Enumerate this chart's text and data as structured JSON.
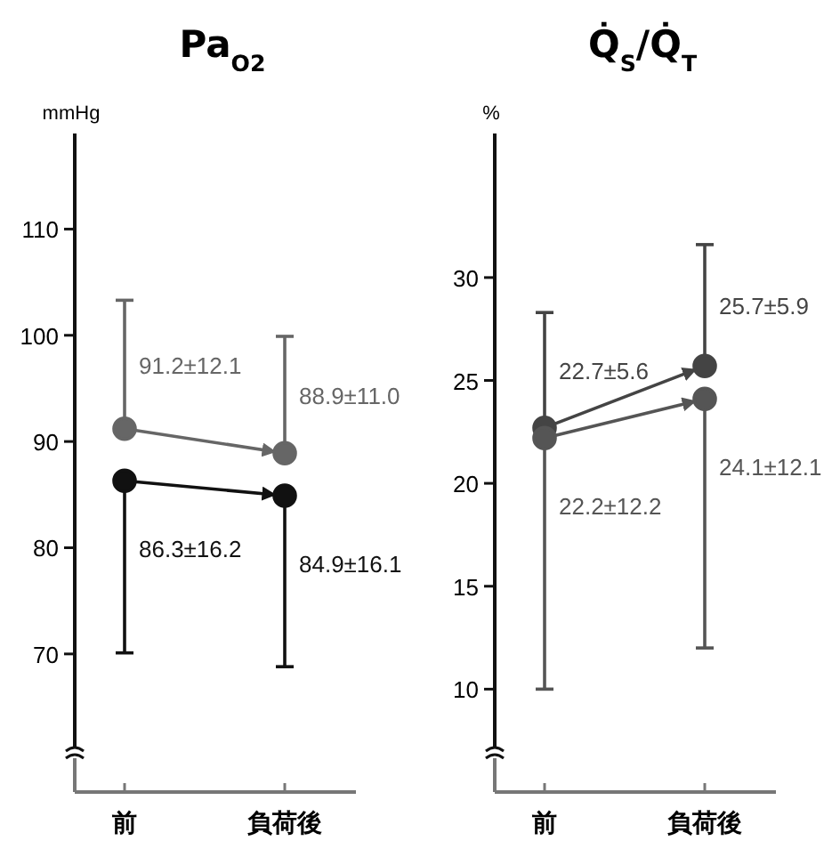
{
  "chart_data": [
    {
      "type": "line",
      "title": "Pa$_{O2}$",
      "ylabel": "mmHg",
      "categories": [
        "前",
        "負荷後"
      ],
      "ylim": [
        57,
        119
      ],
      "yticks": [
        70,
        80,
        90,
        100,
        110
      ],
      "grid": false,
      "marker": "circle",
      "series": [
        {
          "color": "#666666",
          "values": [
            91.2,
            88.9
          ],
          "errors": [
            [
              91.2,
              103.3
            ],
            [
              88.9,
              99.9
            ]
          ],
          "value_labels": [
            "91.2±12.1",
            "88.9±11.0"
          ]
        },
        {
          "color": "#111111",
          "values": [
            86.3,
            84.9
          ],
          "errors": [
            [
              70.1,
              86.3
            ],
            [
              68.8,
              84.9
            ]
          ],
          "value_labels": [
            "86.3±16.2",
            "84.9±16.1"
          ]
        }
      ]
    },
    {
      "type": "line",
      "title": "Q̇$_{S}$/Q̇$_{T}$",
      "ylabel": "%",
      "categories": [
        "前",
        "負荷後"
      ],
      "ylim": [
        5,
        37
      ],
      "yticks": [
        10,
        15,
        20,
        25,
        30
      ],
      "grid": false,
      "marker": "circle",
      "series": [
        {
          "color": "#444444",
          "values": [
            22.7,
            25.7
          ],
          "errors": [
            [
              22.7,
              28.3
            ],
            [
              25.7,
              31.6
            ]
          ],
          "value_labels": [
            "22.7±5.6",
            "25.7±5.9"
          ]
        },
        {
          "color": "#555555",
          "values": [
            22.2,
            24.1
          ],
          "errors": [
            [
              10.0,
              22.2
            ],
            [
              12.0,
              24.1
            ]
          ],
          "value_labels": [
            "22.2±12.2",
            "24.1±12.1"
          ]
        }
      ]
    }
  ]
}
